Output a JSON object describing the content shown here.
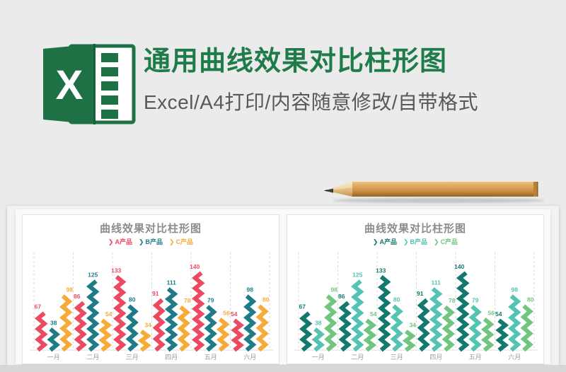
{
  "page": {
    "background": "#ebebeb",
    "bottom_bar_color": "#d7d7d7"
  },
  "header": {
    "title": "通用曲线效果对比柱形图",
    "title_color": "#1f7c4a",
    "subtitle": "Excel/A4打印/内容随意修改/自带格式",
    "subtitle_color": "#585858",
    "logo": {
      "letter": "X",
      "green": "#1e7145",
      "icon_name": "excel-logo"
    }
  },
  "decor": {
    "pencil_icon": "pencil-image"
  },
  "legend_marker": "❯",
  "chart_data": [
    {
      "type": "bar",
      "variant": "zigzag-column",
      "title": "曲线效果对比柱形图",
      "title_color": "#8c8c8c",
      "categories": [
        "一月",
        "二月",
        "三月",
        "四月",
        "五月",
        "六月"
      ],
      "series": [
        {
          "name": "A产品",
          "color": "#ec4a63",
          "values": [
            67,
            86,
            133,
            91,
            140,
            54
          ]
        },
        {
          "name": "B产品",
          "color": "#1e7c89",
          "values": [
            38,
            125,
            80,
            111,
            79,
            98
          ]
        },
        {
          "name": "C产品",
          "color": "#f6ab38",
          "values": [
            98,
            54,
            34,
            78,
            56,
            80
          ]
        }
      ],
      "ylim": [
        0,
        150
      ],
      "grid": "dashed-vertical-separators",
      "legend_position": "top",
      "xlabel": "",
      "ylabel": ""
    },
    {
      "type": "bar",
      "variant": "zigzag-column",
      "title": "曲线效果对比柱形图",
      "title_color": "#8c8c8c",
      "categories": [
        "一月",
        "二月",
        "三月",
        "四月",
        "五月",
        "六月"
      ],
      "series": [
        {
          "name": "A产品",
          "color": "#14796d",
          "values": [
            67,
            86,
            133,
            91,
            140,
            54
          ]
        },
        {
          "name": "B产品",
          "color": "#54c3b2",
          "values": [
            38,
            125,
            80,
            111,
            79,
            98
          ]
        },
        {
          "name": "C产品",
          "color": "#70c57f",
          "values": [
            98,
            54,
            34,
            78,
            56,
            80
          ]
        }
      ],
      "ylim": [
        0,
        150
      ],
      "grid": "dashed-vertical-separators",
      "legend_position": "top",
      "xlabel": "",
      "ylabel": ""
    }
  ]
}
